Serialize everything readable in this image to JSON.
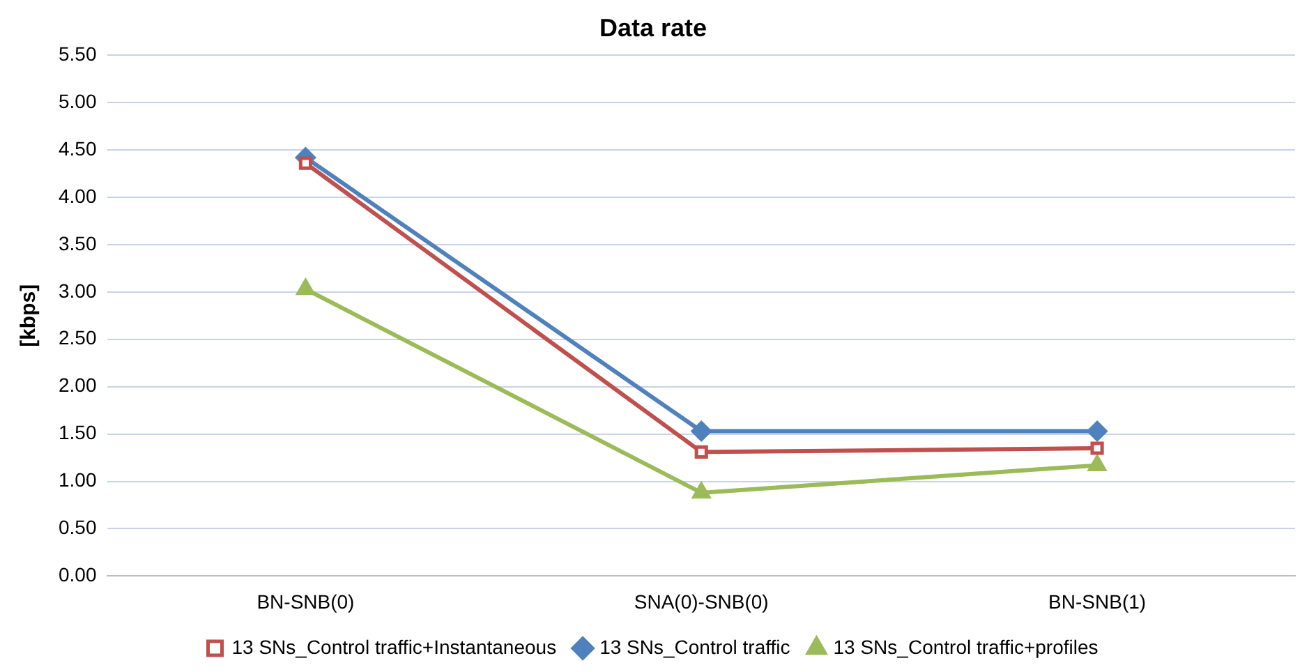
{
  "chart_data": {
    "type": "line",
    "title": "Data rate",
    "ylabel": "[kbps]",
    "categories": [
      "BN-SNB(0)",
      "SNA(0)-SNB(0)",
      "BN-SNB(1)"
    ],
    "series": [
      {
        "name": "13 SNs_Control traffic",
        "color": "#4f81bd",
        "marker": "diamond",
        "values": [
          4.42,
          1.53,
          1.53
        ]
      },
      {
        "name": "13 SNs_Control traffic+Instantaneous",
        "color": "#c0504d",
        "marker": "square",
        "values": [
          4.36,
          1.31,
          1.35
        ]
      },
      {
        "name": "13 SNs_Control traffic+profiles",
        "color": "#9bbb59",
        "marker": "triangle",
        "values": [
          3.03,
          0.88,
          1.17
        ]
      }
    ],
    "ylim": [
      0,
      5.5
    ],
    "yticks": [
      {
        "value": 0,
        "label": "0.00"
      },
      {
        "value": 0.5,
        "label": "0.50"
      },
      {
        "value": 1,
        "label": "1.00"
      },
      {
        "value": 1.5,
        "label": "1.50"
      },
      {
        "value": 2,
        "label": "2.00"
      },
      {
        "value": 2.5,
        "label": "2.50"
      },
      {
        "value": 3,
        "label": "3.00"
      },
      {
        "value": 3.5,
        "label": "3.50"
      },
      {
        "value": 4,
        "label": "4.00"
      },
      {
        "value": 4.5,
        "label": "4.50"
      },
      {
        "value": 5,
        "label": "5.00"
      },
      {
        "value": 5.5,
        "label": "5.50"
      }
    ],
    "grid": "y",
    "legend": "bottom",
    "line_style": "solid"
  }
}
